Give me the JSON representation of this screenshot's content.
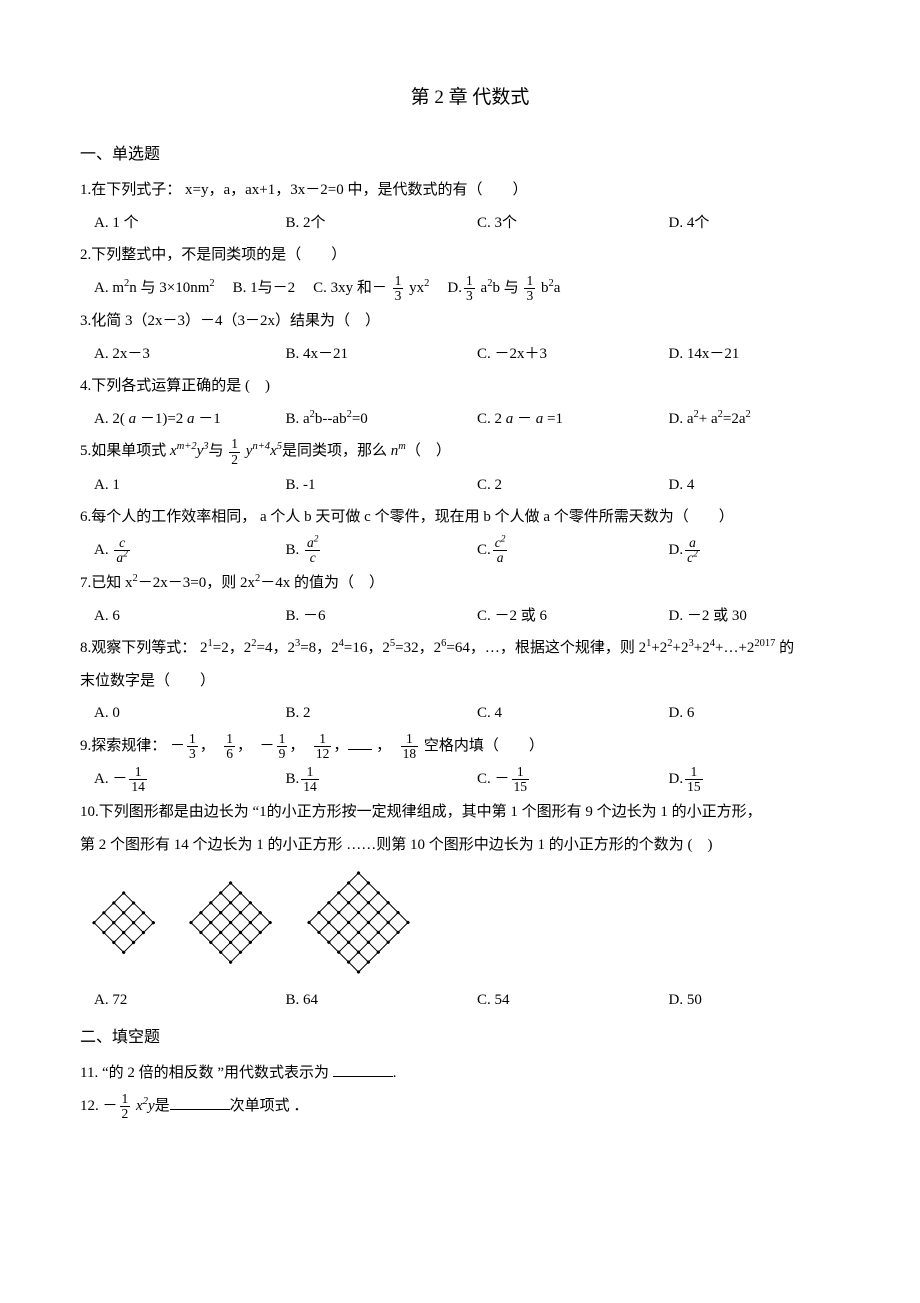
{
  "title": "第 2 章  代数式",
  "section1": "一、单选题",
  "section2": "二、填空题",
  "q1": {
    "stem": "1.在下列式子：  x=y，a，ax+1，3x－2=0 中，是代数式的有（　　）",
    "A": "A. 1 个",
    "B": "B. 2个",
    "C": "C. 3个",
    "D": "D. 4个"
  },
  "q2": {
    "stem": "2.下列整式中，不是同类项的是（　　）",
    "A_pre": "A. m",
    "A_mid": "n 与 3×10nm",
    "A_end": "",
    "B": "B. 1与－2",
    "C_pre": "C. 3xy 和－ ",
    "C_end": " yx",
    "D_pre": "D.",
    "D_mid": " a",
    "D_mid2": "b 与 ",
    "D_end": " b",
    "D_end2": "a"
  },
  "q3": {
    "stem": "3.化简 3（2x－3）－4（3－2x）结果为（　）",
    "A": "A. 2x－3",
    "B": "B. 4x－21",
    "C": "C. －2x＋3",
    "D": "D. 14x－21"
  },
  "q4": {
    "stem_pre": "4.下列各式运算正确的是   (　)",
    "A_pre": "A. 2( ",
    "A_mid": " －1)=2 ",
    "A_end": " －1",
    "B_pre": "B. a",
    "B_mid": "b--ab",
    "B_end": "=0",
    "C_pre": "C. 2 ",
    "C_mid": " － ",
    "C_end": " =1",
    "D_pre": "D. a",
    "D_mid": "+ a",
    "D_end": "=2a"
  },
  "q5": {
    "stem_pre": "5.如果单项式   ",
    "stem_mid": "与  ",
    "stem_end": "是同类项，那么   ",
    "stem_tail": "（　）",
    "A": "A. 1",
    "B": "B. -1",
    "C": "C. 2",
    "D": "D. 4"
  },
  "q6": {
    "stem": "6.每个人的工作效率相同，   a 个人 b 天可做 c 个零件，现在用   b 个人做 a 个零件所需天数为（　　）",
    "A": "A. ",
    "B": "B. ",
    "C": "C.",
    "D": "D."
  },
  "q7": {
    "stem_pre": "7.已知 x",
    "stem_mid": "－2x－3=0，则 2x",
    "stem_end": "－4x 的值为（　）",
    "A": "A. 6",
    "B": "B. －6",
    "C": "C. －2 或 6",
    "D": "D. －2 或 30"
  },
  "q8": {
    "stem_pre": "8.观察下列等式：  2",
    "stem_p2": "=2，2",
    "stem_p3": "=4，2",
    "stem_p4": "=8，2",
    "stem_p5": "=16，2",
    "stem_p6": "=32，2",
    "stem_p7": "=64，…，根据这个规律，则   2",
    "stem_p8": "+2",
    "stem_p9": "+2",
    "stem_p10": "+2",
    "stem_p11": "+…+2",
    "stem_end": " 的",
    "line2": "末位数字是（　　）",
    "A": "A. 0",
    "B": "B. 2",
    "C": "C. 4",
    "D": "D. 6"
  },
  "q9": {
    "stem_pre": "9.探索规律：   ",
    "stem_end": " 空格内填（　　）",
    "A": "A. ",
    "B": "B.",
    "C": "C. ",
    "D": "D."
  },
  "q10": {
    "line1": "10.下列图形都是由边长为   “1的小正方形按一定规律组成，其中第   1 个图形有 9 个边长为 1 的小正方形，",
    "line2": "第 2 个图形有 14 个边长为 1 的小正方形 ……则第 10 个图形中边长为  1 的小正方形的个数为   (　)",
    "A": "A. 72",
    "B": "B. 64",
    "C": "C. 54",
    "D": "D. 50"
  },
  "q11": {
    "text": "11. “的 2 倍的相反数  ”用代数式表示为   ",
    "tail": "."
  },
  "q12": {
    "pre": "12. ",
    "mid": "是",
    "end": "次单项式  ．"
  },
  "fracs": {
    "one_third_n": "1",
    "one_third_d": "3",
    "half_n": "1",
    "half_d": "2",
    "c_a2_n": "c",
    "c_a2_d": "a",
    "a2_c_n": "a",
    "a2_c_d": "c",
    "c2_a_n": "c",
    "c2_a_d": "a",
    "a_c2_n": "a",
    "a_c2_d": "c",
    "f13_n": "1",
    "f13_d": "3",
    "f16_n": "1",
    "f16_d": "6",
    "f19_n": "1",
    "f19_d": "9",
    "f112_n": "1",
    "f112_d": "12",
    "f118_n": "1",
    "f118_d": "18",
    "f114_n": "1",
    "f114_d": "14",
    "f115_n": "1",
    "f115_d": "15"
  },
  "colors": {
    "text": "#000000",
    "bg": "#ffffff",
    "stroke": "#000000"
  },
  "diagrams": {
    "type": "grid-diamonds",
    "items": [
      {
        "grid": 3,
        "cell": 14
      },
      {
        "grid": 4,
        "cell": 14
      },
      {
        "grid": 5,
        "cell": 14
      }
    ],
    "stroke": "#000000",
    "stroke_width": 1,
    "dot_r": 1.6
  }
}
